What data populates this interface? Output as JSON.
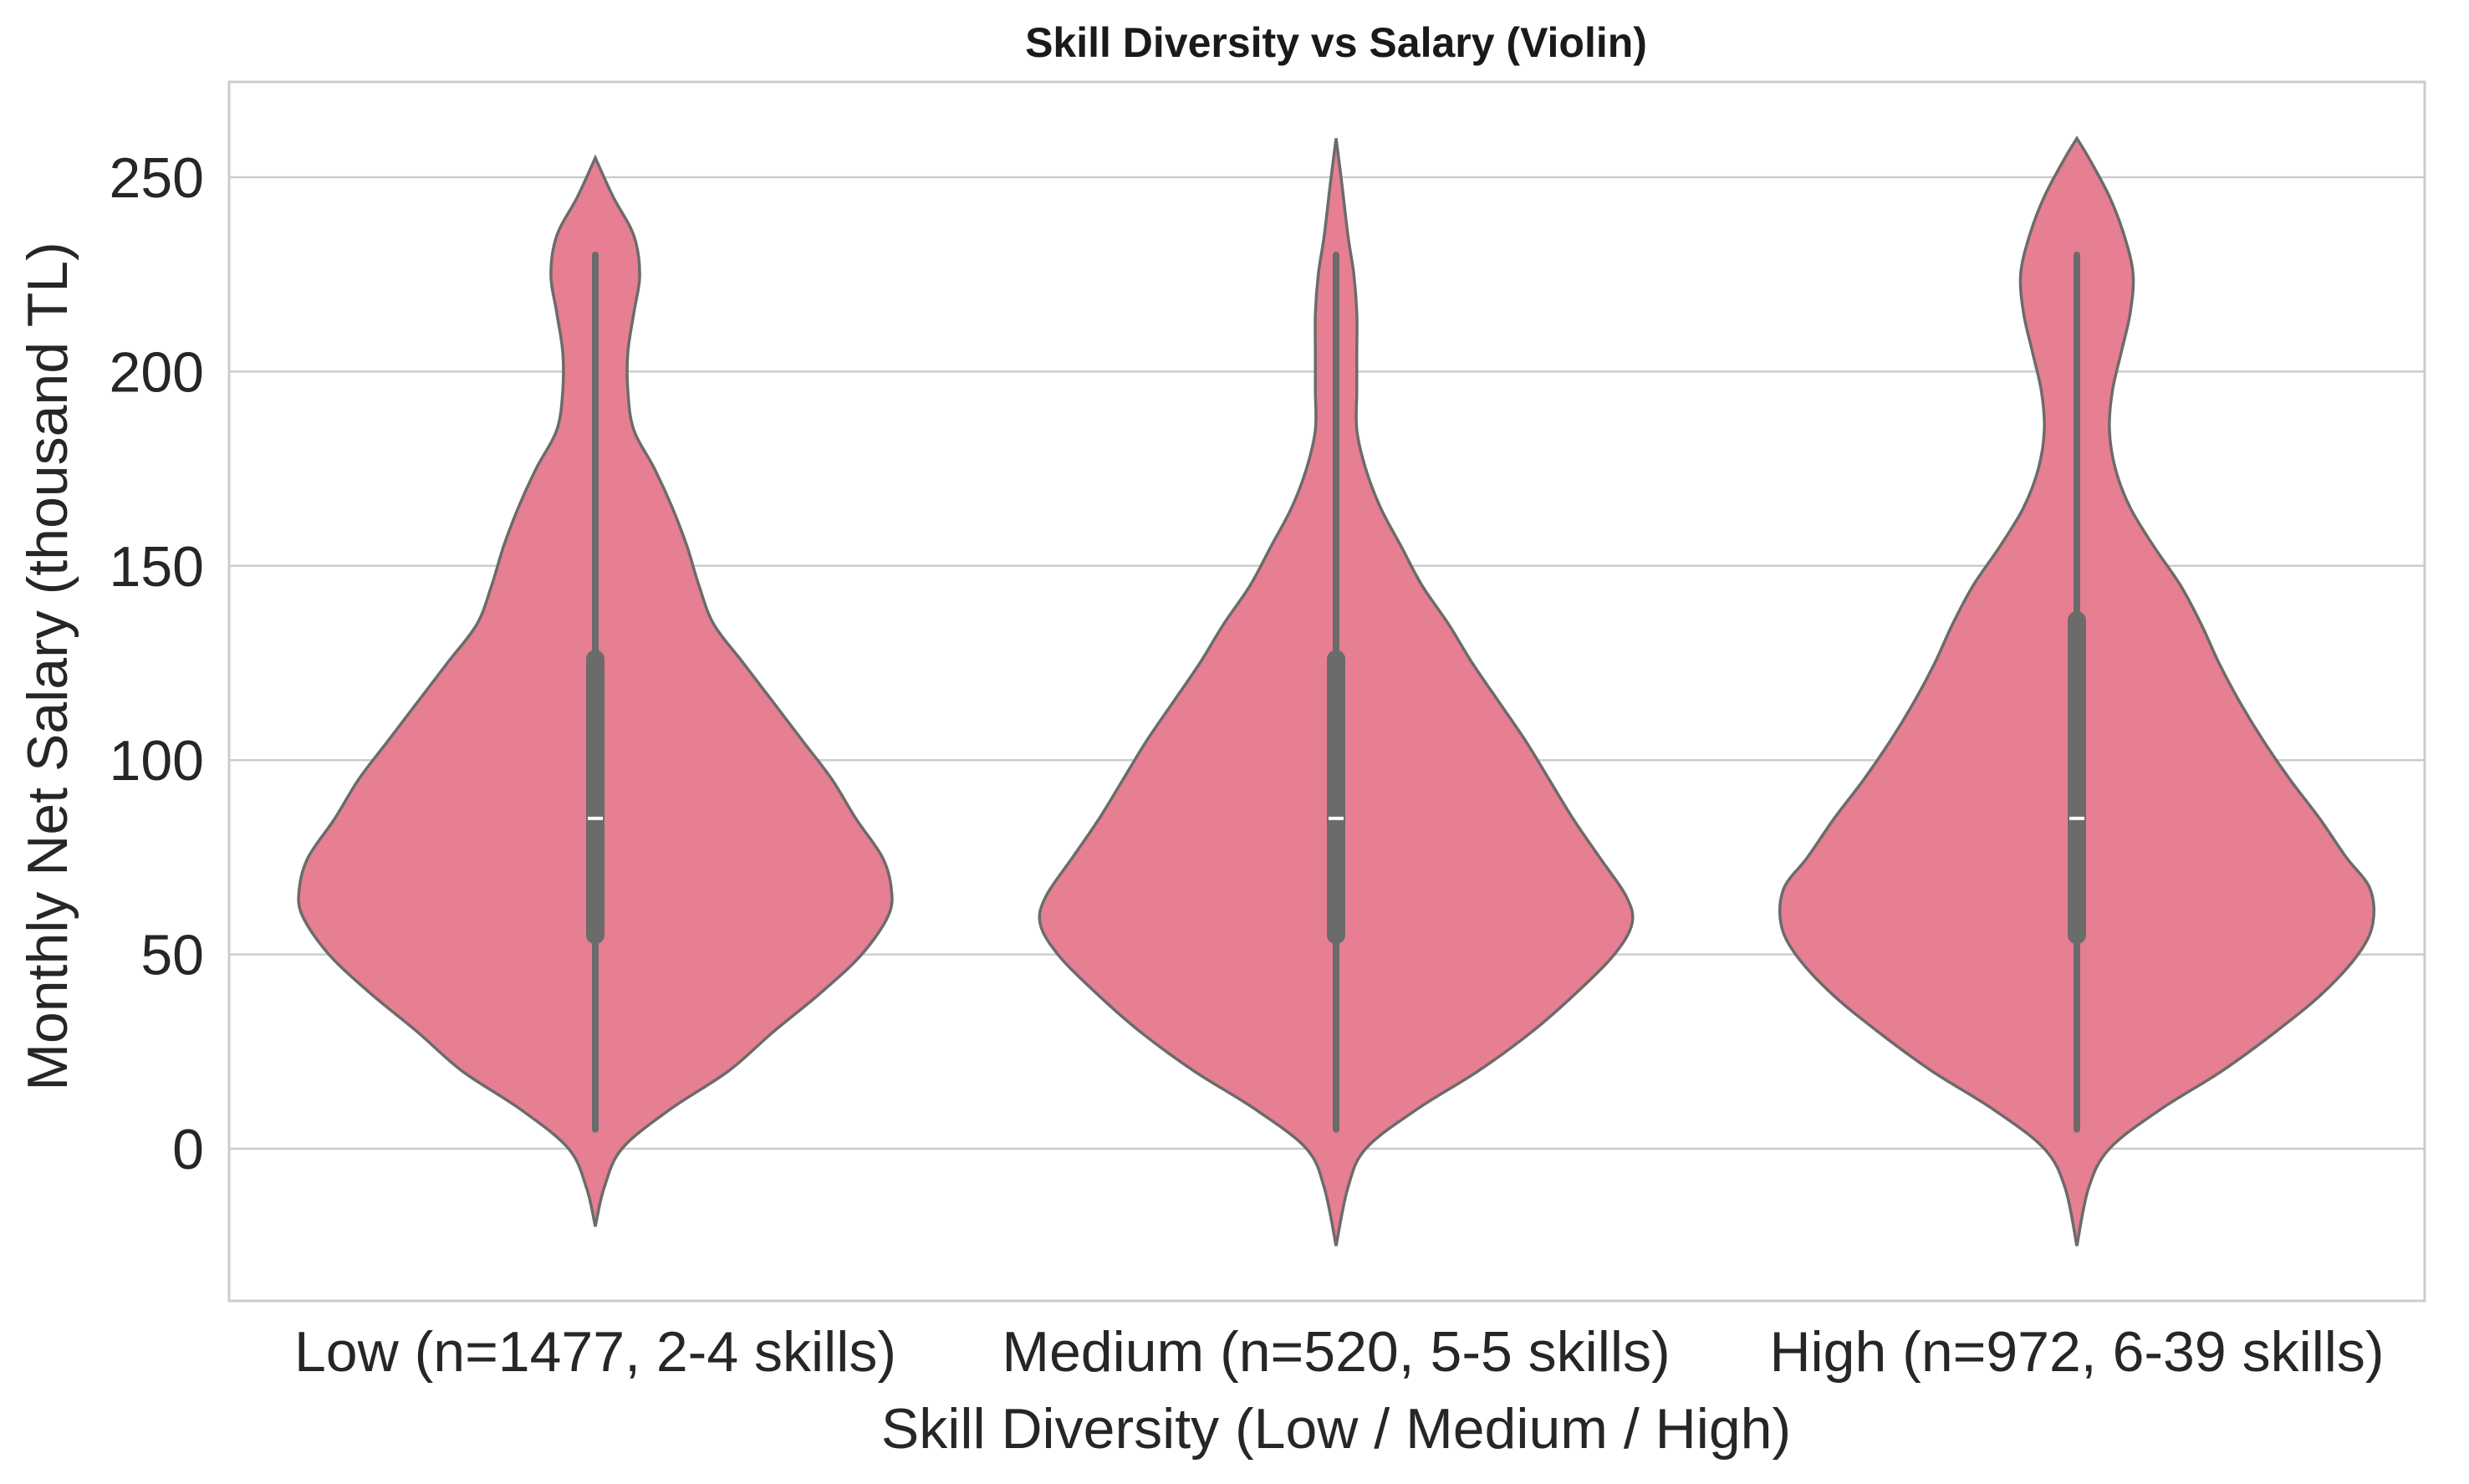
{
  "chart_data": {
    "type": "violin",
    "title": "Skill Diversity vs Salary (Violin)",
    "xlabel": "Skill Diversity (Low / Medium / High)",
    "ylabel": "Monthly Net Salary (thousand TL)",
    "ylim": [
      -39,
      275
    ],
    "yticks": [
      0,
      50,
      100,
      150,
      200,
      250
    ],
    "grid": true,
    "legend": "none",
    "colors": {
      "violin_fill": "#e67f91",
      "violin_edge": "#6b6b6b",
      "box": "#6b6b6b",
      "median": "#ffffff",
      "grid": "#cccccc",
      "frame": "#cccccc"
    },
    "categories": [
      "Low (n=1477, 2-4 skills)",
      "Medium (n=520, 5-5 skills)",
      "High (n=972, 6-39 skills)"
    ],
    "series": [
      {
        "stats": {
          "whisker_low": 5,
          "q1": 55,
          "median": 85,
          "q3": 126,
          "whisker_high": 230
        },
        "density": [
          [
            -20,
            0.0
          ],
          [
            -10,
            0.03
          ],
          [
            0,
            0.09
          ],
          [
            10,
            0.25
          ],
          [
            20,
            0.45
          ],
          [
            30,
            0.6
          ],
          [
            40,
            0.76
          ],
          [
            50,
            0.9
          ],
          [
            60,
            0.99
          ],
          [
            67,
            1.0
          ],
          [
            75,
            0.97
          ],
          [
            85,
            0.88
          ],
          [
            95,
            0.8
          ],
          [
            105,
            0.7
          ],
          [
            115,
            0.6
          ],
          [
            125,
            0.5
          ],
          [
            135,
            0.4
          ],
          [
            145,
            0.35
          ],
          [
            155,
            0.31
          ],
          [
            165,
            0.26
          ],
          [
            175,
            0.2
          ],
          [
            185,
            0.13
          ],
          [
            195,
            0.11
          ],
          [
            205,
            0.11
          ],
          [
            215,
            0.13
          ],
          [
            225,
            0.15
          ],
          [
            235,
            0.13
          ],
          [
            245,
            0.06
          ],
          [
            255,
            0.0
          ]
        ]
      },
      {
        "stats": {
          "whisker_low": 5,
          "q1": 55,
          "median": 85,
          "q3": 126,
          "whisker_high": 230
        },
        "density": [
          [
            -25,
            0.0
          ],
          [
            -10,
            0.04
          ],
          [
            0,
            0.1
          ],
          [
            10,
            0.27
          ],
          [
            20,
            0.48
          ],
          [
            30,
            0.66
          ],
          [
            40,
            0.81
          ],
          [
            50,
            0.94
          ],
          [
            58,
            1.0
          ],
          [
            65,
            0.98
          ],
          [
            75,
            0.89
          ],
          [
            85,
            0.8
          ],
          [
            95,
            0.72
          ],
          [
            105,
            0.64
          ],
          [
            115,
            0.55
          ],
          [
            125,
            0.46
          ],
          [
            135,
            0.38
          ],
          [
            145,
            0.29
          ],
          [
            155,
            0.22
          ],
          [
            165,
            0.15
          ],
          [
            175,
            0.1
          ],
          [
            185,
            0.07
          ],
          [
            195,
            0.07
          ],
          [
            205,
            0.07
          ],
          [
            215,
            0.07
          ],
          [
            225,
            0.06
          ],
          [
            235,
            0.04
          ],
          [
            248,
            0.02
          ],
          [
            260,
            0.0
          ]
        ]
      },
      {
        "stats": {
          "whisker_low": 5,
          "q1": 55,
          "median": 85,
          "q3": 136,
          "whisker_high": 230
        },
        "density": [
          [
            -25,
            0.0
          ],
          [
            -10,
            0.04
          ],
          [
            0,
            0.11
          ],
          [
            10,
            0.28
          ],
          [
            20,
            0.49
          ],
          [
            30,
            0.67
          ],
          [
            40,
            0.83
          ],
          [
            50,
            0.95
          ],
          [
            58,
            1.0
          ],
          [
            67,
            0.99
          ],
          [
            75,
            0.91
          ],
          [
            85,
            0.82
          ],
          [
            95,
            0.72
          ],
          [
            105,
            0.63
          ],
          [
            115,
            0.55
          ],
          [
            125,
            0.48
          ],
          [
            135,
            0.42
          ],
          [
            145,
            0.35
          ],
          [
            155,
            0.26
          ],
          [
            165,
            0.18
          ],
          [
            175,
            0.13
          ],
          [
            185,
            0.11
          ],
          [
            195,
            0.12
          ],
          [
            205,
            0.15
          ],
          [
            215,
            0.18
          ],
          [
            225,
            0.19
          ],
          [
            235,
            0.16
          ],
          [
            245,
            0.11
          ],
          [
            255,
            0.04
          ],
          [
            260,
            0.0
          ]
        ]
      }
    ]
  }
}
